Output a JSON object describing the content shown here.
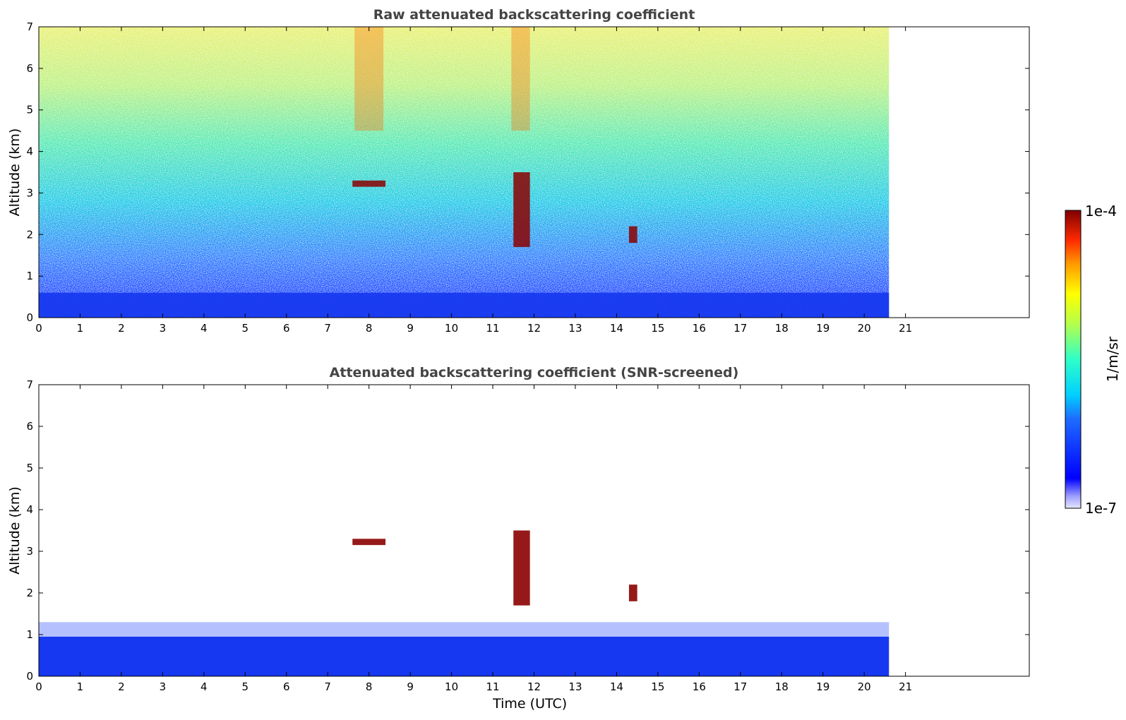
{
  "chart_data": [
    {
      "type": "heatmap",
      "title": "Raw attenuated backscattering coefficient",
      "xlabel": "",
      "ylabel": "Altitude (km)",
      "xlim": [
        0,
        24
      ],
      "ylim": [
        0,
        7
      ],
      "x_ticks": [
        0,
        1,
        2,
        3,
        4,
        5,
        6,
        7,
        8,
        9,
        10,
        11,
        12,
        13,
        14,
        15,
        16,
        17,
        18,
        19,
        20,
        21
      ],
      "y_ticks": [
        0,
        1,
        2,
        3,
        4,
        5,
        6,
        7
      ],
      "data_end_time": 20.6,
      "grid": false,
      "features": [
        {
          "time": [
            0,
            20.6
          ],
          "altitude": [
            0,
            0.6
          ],
          "level": "low-blue",
          "description_text": ""
        },
        {
          "time": [
            7.6,
            8.4
          ],
          "altitude": [
            3.15,
            3.3
          ],
          "level": "high"
        },
        {
          "time": [
            11.5,
            11.9
          ],
          "altitude": [
            1.7,
            3.5
          ],
          "level": "high"
        },
        {
          "time": [
            14.3,
            14.5
          ],
          "altitude": [
            1.8,
            2.2
          ],
          "level": "high"
        }
      ]
    },
    {
      "type": "heatmap",
      "title": "Attenuated backscattering coefficient (SNR-screened)",
      "xlabel": "Time (UTC)",
      "ylabel": "Altitude (km)",
      "xlim": [
        0,
        24
      ],
      "ylim": [
        0,
        7
      ],
      "x_ticks": [
        0,
        1,
        2,
        3,
        4,
        5,
        6,
        7,
        8,
        9,
        10,
        11,
        12,
        13,
        14,
        15,
        16,
        17,
        18,
        19,
        20,
        21
      ],
      "y_ticks": [
        0,
        1,
        2,
        3,
        4,
        5,
        6,
        7
      ],
      "data_end_time": 20.6,
      "grid": false,
      "features": [
        {
          "time": [
            0,
            20.6
          ],
          "altitude": [
            0,
            1.3
          ],
          "level": "low-blue"
        },
        {
          "time": [
            7.6,
            8.4
          ],
          "altitude": [
            3.15,
            3.3
          ],
          "level": "high"
        },
        {
          "time": [
            11.5,
            11.9
          ],
          "altitude": [
            1.7,
            3.5
          ],
          "level": "high"
        },
        {
          "time": [
            14.3,
            14.5
          ],
          "altitude": [
            1.8,
            2.2
          ],
          "level": "high"
        }
      ]
    }
  ],
  "colorbar": {
    "label": "1/m/sr",
    "max_label": "1e-4",
    "min_label": "1e-7",
    "colormap": "jet",
    "scale": "log"
  }
}
